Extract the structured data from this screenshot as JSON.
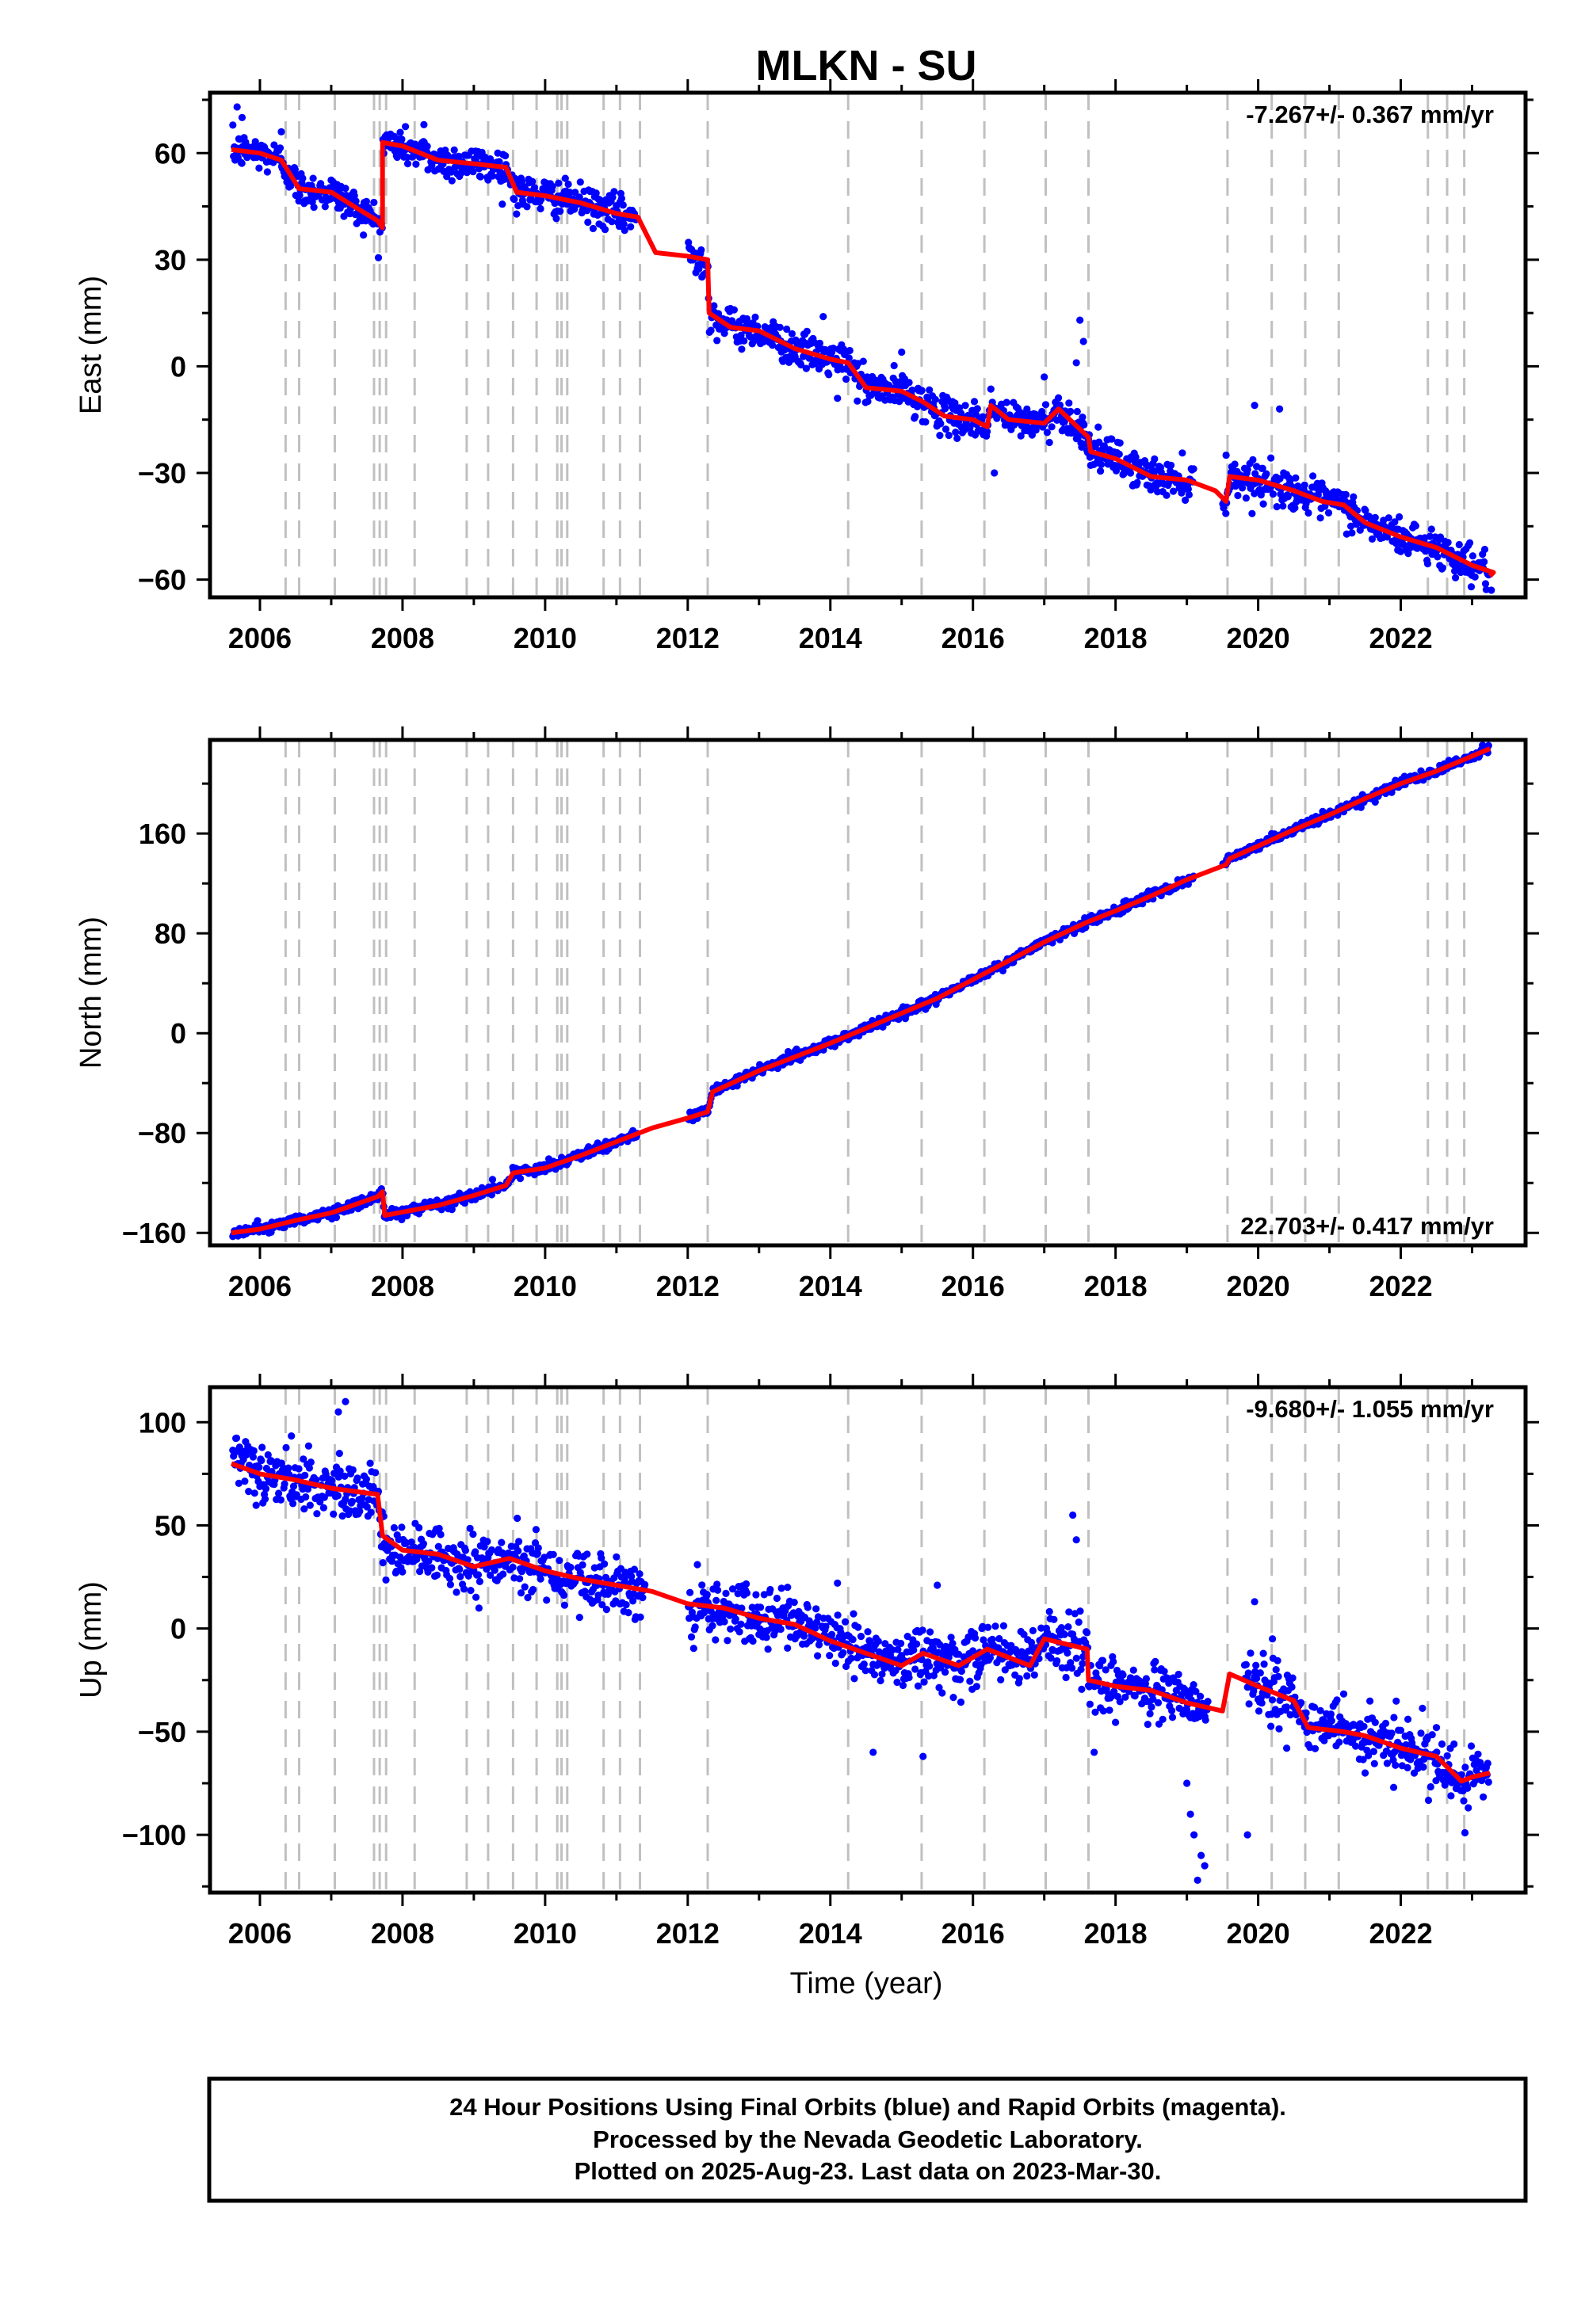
{
  "title": "MLKN - SU",
  "x_axis_label": "Time (year)",
  "colors": {
    "data": "#0000ff",
    "model": "#ff0000",
    "offset_line": "#c0c0c0",
    "frame": "#000000"
  },
  "footer": {
    "line1": "24 Hour Positions Using Final Orbits (blue) and Rapid Orbits (magenta).",
    "line2": "Processed by the Nevada Geodetic Laboratory.",
    "line3": "Plotted on 2025-Aug-23. Last data on 2023-Mar-30."
  },
  "chart_data": [
    {
      "type": "scatter",
      "component": "east",
      "ylabel": "East (mm)",
      "rate_text": "-7.267+/- 0.367 mm/yr",
      "rate_position": "top-right",
      "xlim": [
        2005.3,
        2023.75
      ],
      "ylim": [
        -65,
        77
      ],
      "x_ticks": [
        2006,
        2008,
        2010,
        2012,
        2014,
        2016,
        2018,
        2020,
        2022
      ],
      "y_ticks": [
        -60,
        -30,
        0,
        30,
        60
      ],
      "y_tick_labels": [
        "−60",
        "−30",
        "0",
        "30",
        "60"
      ],
      "noise_mm": 2.5,
      "model_breakpoints": [
        [
          2005.6,
          61
        ],
        [
          2006.0,
          60
        ],
        [
          2006.3,
          58
        ],
        [
          2006.55,
          50
        ],
        [
          2007.0,
          49
        ],
        [
          2007.4,
          44
        ],
        [
          2007.65,
          41
        ],
        [
          2007.72,
          39
        ],
        [
          2007.72,
          63
        ],
        [
          2008.0,
          62
        ],
        [
          2008.5,
          58
        ],
        [
          2009.0,
          57
        ],
        [
          2009.45,
          56
        ],
        [
          2009.6,
          49
        ],
        [
          2010.0,
          48
        ],
        [
          2010.5,
          46
        ],
        [
          2011.0,
          43
        ],
        [
          2011.3,
          42
        ],
        [
          2011.55,
          32
        ],
        [
          2012.0,
          31
        ],
        [
          2012.28,
          30
        ],
        [
          2012.3,
          15
        ],
        [
          2012.6,
          11
        ],
        [
          2013.0,
          10
        ],
        [
          2013.5,
          5
        ],
        [
          2014.0,
          2
        ],
        [
          2014.25,
          1
        ],
        [
          2014.5,
          -6
        ],
        [
          2015.0,
          -7
        ],
        [
          2015.3,
          -10
        ],
        [
          2015.6,
          -14
        ],
        [
          2016.0,
          -15
        ],
        [
          2016.2,
          -17
        ],
        [
          2016.25,
          -11
        ],
        [
          2016.5,
          -15
        ],
        [
          2017.0,
          -16
        ],
        [
          2017.2,
          -12
        ],
        [
          2017.62,
          -20
        ],
        [
          2017.65,
          -24
        ],
        [
          2018.0,
          -26
        ],
        [
          2018.5,
          -31
        ],
        [
          2019.0,
          -32
        ],
        [
          2019.4,
          -35
        ],
        [
          2019.55,
          -38
        ],
        [
          2019.6,
          -31
        ],
        [
          2020.0,
          -32
        ],
        [
          2020.5,
          -35
        ],
        [
          2020.9,
          -38
        ],
        [
          2021.2,
          -39
        ],
        [
          2021.5,
          -44
        ],
        [
          2022.0,
          -48
        ],
        [
          2022.5,
          -51
        ],
        [
          2023.0,
          -56
        ],
        [
          2023.3,
          -58
        ],
        [
          2023.25,
          -59
        ]
      ],
      "outliers": [
        [
          2005.68,
          73
        ],
        [
          2005.75,
          70
        ],
        [
          2006.3,
          66
        ],
        [
          2008.3,
          68
        ],
        [
          2013.9,
          14
        ],
        [
          2017.5,
          13
        ],
        [
          2017.45,
          1
        ],
        [
          2017.55,
          7
        ],
        [
          2019.95,
          -11
        ],
        [
          2020.3,
          -12
        ],
        [
          2017.0,
          -3
        ],
        [
          2014.1,
          -9
        ],
        [
          2015.0,
          4
        ],
        [
          2019.55,
          -25
        ],
        [
          2021.3,
          -45
        ],
        [
          2016.3,
          -30
        ],
        [
          2023.27,
          -63
        ]
      ],
      "gaps": [
        [
          2011.3,
          2012.0
        ],
        [
          2019.1,
          2019.5
        ]
      ]
    },
    {
      "type": "scatter",
      "component": "north",
      "ylabel": "North (mm)",
      "rate_text": "22.703+/- 0.417 mm/yr",
      "rate_position": "bottom-right",
      "xlim": [
        2005.3,
        2023.75
      ],
      "ylim": [
        -170,
        235
      ],
      "x_ticks": [
        2006,
        2008,
        2010,
        2012,
        2014,
        2016,
        2018,
        2020,
        2022
      ],
      "y_ticks": [
        -160,
        -80,
        0,
        80,
        160
      ],
      "y_tick_labels": [
        "−160",
        "−80",
        "0",
        "80",
        "160"
      ],
      "noise_mm": 2.0,
      "model_breakpoints": [
        [
          2005.6,
          -160
        ],
        [
          2006.0,
          -157
        ],
        [
          2006.5,
          -150
        ],
        [
          2007.0,
          -144
        ],
        [
          2007.65,
          -131
        ],
        [
          2007.72,
          -127
        ],
        [
          2007.75,
          -146
        ],
        [
          2008.5,
          -138
        ],
        [
          2009.0,
          -130
        ],
        [
          2009.45,
          -122
        ],
        [
          2009.55,
          -112
        ],
        [
          2010.0,
          -108
        ],
        [
          2010.5,
          -98
        ],
        [
          2011.0,
          -87
        ],
        [
          2011.5,
          -76
        ],
        [
          2012.0,
          -68
        ],
        [
          2012.28,
          -63
        ],
        [
          2012.35,
          -47
        ],
        [
          2013.0,
          -30
        ],
        [
          2014.0,
          -8
        ],
        [
          2014.5,
          4
        ],
        [
          2015.0,
          16
        ],
        [
          2015.5,
          28
        ],
        [
          2016.0,
          43
        ],
        [
          2016.5,
          58
        ],
        [
          2017.0,
          73
        ],
        [
          2017.6,
          89
        ],
        [
          2018.0,
          98
        ],
        [
          2018.5,
          110
        ],
        [
          2019.0,
          123
        ],
        [
          2019.55,
          135
        ],
        [
          2019.6,
          140
        ],
        [
          2020.0,
          150
        ],
        [
          2020.5,
          163
        ],
        [
          2021.0,
          175
        ],
        [
          2021.5,
          188
        ],
        [
          2022.0,
          200
        ],
        [
          2022.5,
          210
        ],
        [
          2023.0,
          222
        ],
        [
          2023.25,
          228
        ]
      ],
      "outliers": [],
      "gaps": [
        [
          2011.3,
          2012.0
        ],
        [
          2019.1,
          2019.5
        ]
      ]
    },
    {
      "type": "scatter",
      "component": "up",
      "ylabel": "Up (mm)",
      "rate_text": "-9.680+/- 1.055 mm/yr",
      "rate_position": "top-right",
      "xlim": [
        2005.3,
        2023.75
      ],
      "ylim": [
        -128,
        117
      ],
      "x_ticks": [
        2006,
        2008,
        2010,
        2012,
        2014,
        2016,
        2018,
        2020,
        2022
      ],
      "y_ticks": [
        -100,
        -50,
        0,
        50,
        100
      ],
      "y_tick_labels": [
        "−100",
        "−50",
        "0",
        "50",
        "100"
      ],
      "noise_mm": 7.0,
      "model_breakpoints": [
        [
          2005.6,
          80
        ],
        [
          2006.0,
          75
        ],
        [
          2006.5,
          72
        ],
        [
          2007.0,
          68
        ],
        [
          2007.65,
          65
        ],
        [
          2007.72,
          45
        ],
        [
          2008.0,
          38
        ],
        [
          2008.5,
          36
        ],
        [
          2009.0,
          30
        ],
        [
          2009.5,
          34
        ],
        [
          2010.0,
          28
        ],
        [
          2010.5,
          24
        ],
        [
          2011.0,
          21
        ],
        [
          2011.5,
          18
        ],
        [
          2012.0,
          12
        ],
        [
          2012.5,
          10
        ],
        [
          2013.0,
          5
        ],
        [
          2013.5,
          2
        ],
        [
          2014.0,
          -6
        ],
        [
          2014.5,
          -12
        ],
        [
          2015.0,
          -18
        ],
        [
          2015.3,
          -12
        ],
        [
          2015.8,
          -18
        ],
        [
          2016.2,
          -10
        ],
        [
          2016.8,
          -18
        ],
        [
          2017.0,
          -5
        ],
        [
          2017.6,
          -10
        ],
        [
          2017.62,
          -25
        ],
        [
          2018.0,
          -28
        ],
        [
          2018.5,
          -30
        ],
        [
          2019.0,
          -36
        ],
        [
          2019.5,
          -40
        ],
        [
          2019.6,
          -22
        ],
        [
          2020.0,
          -28
        ],
        [
          2020.5,
          -35
        ],
        [
          2020.7,
          -48
        ],
        [
          2021.2,
          -50
        ],
        [
          2021.5,
          -52
        ],
        [
          2022.0,
          -58
        ],
        [
          2022.5,
          -62
        ],
        [
          2022.85,
          -74
        ],
        [
          2023.0,
          -72
        ],
        [
          2023.25,
          -70
        ]
      ],
      "outliers": [
        [
          2007.2,
          110
        ],
        [
          2007.1,
          105
        ],
        [
          2013.4,
          20
        ],
        [
          2014.1,
          22
        ],
        [
          2017.4,
          55
        ],
        [
          2017.45,
          43
        ],
        [
          2019.0,
          -75
        ],
        [
          2019.05,
          -90
        ],
        [
          2019.1,
          -100
        ],
        [
          2019.2,
          -110
        ],
        [
          2019.25,
          -115
        ],
        [
          2019.15,
          -122
        ],
        [
          2019.85,
          -100
        ],
        [
          2019.95,
          13
        ],
        [
          2020.2,
          -5
        ],
        [
          2022.9,
          -99
        ],
        [
          2014.6,
          -60
        ],
        [
          2015.3,
          -62
        ],
        [
          2017.7,
          -60
        ],
        [
          2020.4,
          -58
        ],
        [
          2021.5,
          -70
        ],
        [
          2021.9,
          -77
        ],
        [
          2015.5,
          21
        ],
        [
          2022.1,
          -44
        ],
        [
          2022.5,
          -48
        ]
      ],
      "gaps": [
        [
          2011.4,
          2012.0
        ],
        [
          2019.3,
          2019.8
        ]
      ]
    }
  ],
  "offset_epochs": [
    2006.36,
    2006.55,
    2007.05,
    2007.6,
    2007.68,
    2007.77,
    2008.17,
    2008.9,
    2009.2,
    2009.55,
    2009.88,
    2010.17,
    2010.23,
    2010.31,
    2010.82,
    2011.05,
    2011.33,
    2012.28,
    2014.25,
    2015.28,
    2016.16,
    2017.02,
    2017.62,
    2019.57,
    2020.19,
    2020.66,
    2021.13,
    2022.38,
    2022.65,
    2022.89
  ]
}
